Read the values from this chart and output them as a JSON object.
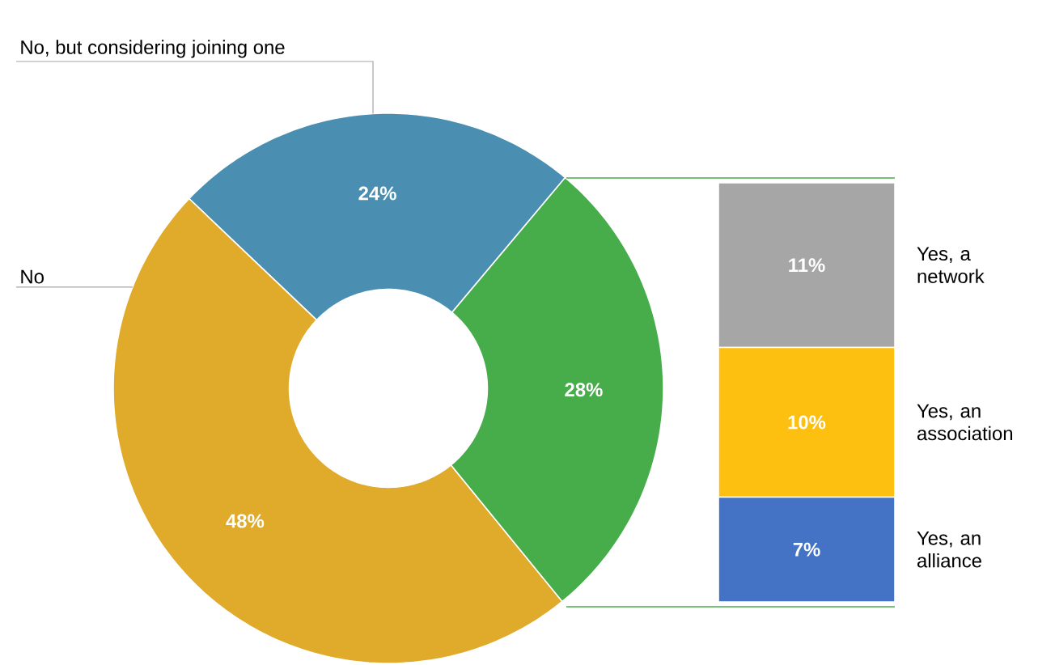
{
  "chart_data": [
    {
      "type": "donut",
      "categories": [
        "No, but considering joining one",
        "No",
        null
      ],
      "values": [
        24,
        48,
        28
      ],
      "colors": [
        "#4a8fb1",
        "#e0aa2b",
        "#47ad4b"
      ],
      "value_labels": [
        "24%",
        "48%",
        "28%"
      ]
    },
    {
      "type": "bar",
      "stacked": true,
      "categories": [
        null
      ],
      "series": [
        {
          "name": "Yes, an alliance",
          "color": "#4472c4",
          "values": [
            7
          ],
          "value_labels": [
            "7%"
          ]
        },
        {
          "name": "Yes, an association",
          "color": "#fdbf10",
          "values": [
            10
          ],
          "value_labels": [
            "10%"
          ]
        },
        {
          "name": "Yes, a network",
          "color": "#a5a6a5",
          "values": [
            11
          ],
          "value_labels": [
            "11%"
          ]
        }
      ]
    }
  ]
}
